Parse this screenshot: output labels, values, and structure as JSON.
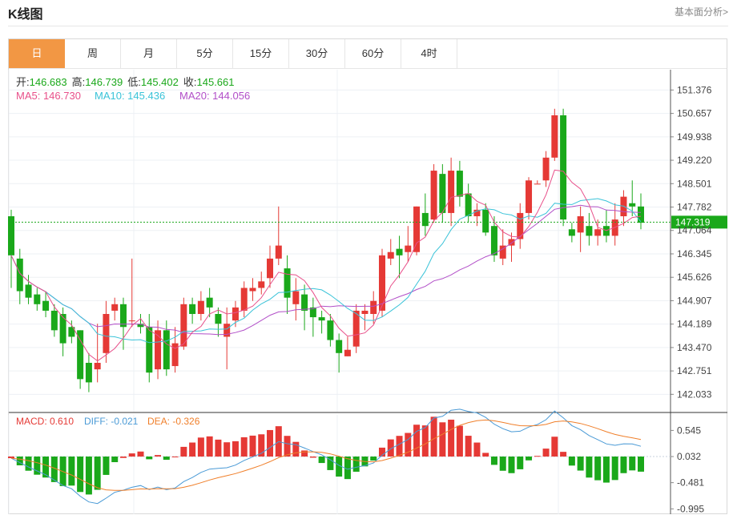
{
  "header": {
    "title": "K线图",
    "link": "基本面分析>"
  },
  "tabs": [
    "日",
    "周",
    "月",
    "5分",
    "15分",
    "30分",
    "60分",
    "4时"
  ],
  "active_tab": 0,
  "info": {
    "open_label": "开:",
    "open": "146.683",
    "high_label": "高:",
    "high": "146.739",
    "low_label": "低:",
    "low": "145.402",
    "close_label": "收:",
    "close": "145.661",
    "ma5": "MA5: 146.730",
    "ma10": "MA10: 145.436",
    "ma20": "MA20: 144.056"
  },
  "macd_info": {
    "macd": "MACD: 0.610",
    "diff": "DIFF: -0.021",
    "dea": "DEA: -0.326"
  },
  "current_price": "147.319",
  "colors": {
    "up": "#e53935",
    "down": "#1aa81a",
    "ma5": "#e8508a",
    "ma10": "#3ac3d8",
    "ma20": "#b24fc8",
    "diff": "#4a9ad6",
    "dea": "#f07f2a",
    "accent": "#f29744"
  },
  "chart_data": [
    {
      "type": "candlestick",
      "ylim": [
        141.5,
        152.0
      ],
      "y_ticks": [
        "151.376",
        "150.657",
        "149.938",
        "149.220",
        "148.501",
        "147.782",
        "147.064",
        "146.345",
        "145.626",
        "144.907",
        "144.189",
        "143.470",
        "142.751",
        "142.033"
      ],
      "candles": [
        [
          147.5,
          146.3,
          147.7,
          145.3
        ],
        [
          146.2,
          145.2,
          146.5,
          144.8
        ],
        [
          145.4,
          145.0,
          145.7,
          144.8
        ],
        [
          145.1,
          144.8,
          145.3,
          144.6
        ],
        [
          144.9,
          144.6,
          145.2,
          144.4
        ],
        [
          144.6,
          144.0,
          144.8,
          143.8
        ],
        [
          144.5,
          143.6,
          144.7,
          143.2
        ],
        [
          144.1,
          143.8,
          144.3,
          143.6
        ],
        [
          144.0,
          142.5,
          144.0,
          142.2
        ],
        [
          143.0,
          142.4,
          143.3,
          142.1
        ],
        [
          142.8,
          143.0,
          144.2,
          142.4
        ],
        [
          143.3,
          144.5,
          144.9,
          143.0
        ],
        [
          144.6,
          144.8,
          145.0,
          144.3
        ],
        [
          144.8,
          144.1,
          145.0,
          143.4
        ],
        [
          144.3,
          144.3,
          146.2,
          144.1
        ],
        [
          144.2,
          144.1,
          144.5,
          143.9
        ],
        [
          144.1,
          142.7,
          144.5,
          142.4
        ],
        [
          142.8,
          144.0,
          144.3,
          142.5
        ],
        [
          144.0,
          142.8,
          144.3,
          142.6
        ],
        [
          142.9,
          143.6,
          144.1,
          142.7
        ],
        [
          143.5,
          144.8,
          145.0,
          143.4
        ],
        [
          144.8,
          144.5,
          145.0,
          144.2
        ],
        [
          144.5,
          144.9,
          145.2,
          144.3
        ],
        [
          145.0,
          144.7,
          145.3,
          144.4
        ],
        [
          144.5,
          144.2,
          144.7,
          143.8
        ],
        [
          143.8,
          144.2,
          144.7,
          142.8
        ],
        [
          144.3,
          144.7,
          144.9,
          144.1
        ],
        [
          144.6,
          145.3,
          145.5,
          144.4
        ],
        [
          145.2,
          145.3,
          145.6,
          144.9
        ],
        [
          145.3,
          145.5,
          145.8,
          145.1
        ],
        [
          145.6,
          146.2,
          146.6,
          145.3
        ],
        [
          146.2,
          146.6,
          147.8,
          146.0
        ],
        [
          145.9,
          145.0,
          146.3,
          144.5
        ],
        [
          144.8,
          145.2,
          145.6,
          144.3
        ],
        [
          145.1,
          144.6,
          145.4,
          144.0
        ],
        [
          144.7,
          144.4,
          145.0,
          143.8
        ],
        [
          144.4,
          144.3,
          144.6,
          143.9
        ],
        [
          144.3,
          143.7,
          144.5,
          143.5
        ],
        [
          143.7,
          143.3,
          143.9,
          142.7
        ],
        [
          143.2,
          143.4,
          143.8,
          143.2
        ],
        [
          143.5,
          144.6,
          144.8,
          143.3
        ],
        [
          144.5,
          144.6,
          144.8,
          144.0
        ],
        [
          144.5,
          144.9,
          145.2,
          144.2
        ],
        [
          144.6,
          146.3,
          146.5,
          144.4
        ],
        [
          146.2,
          146.4,
          146.8,
          146.0
        ],
        [
          146.5,
          146.3,
          146.9,
          145.6
        ],
        [
          146.4,
          146.6,
          147.2,
          146.1
        ],
        [
          146.4,
          147.8,
          147.8,
          146.3
        ],
        [
          147.6,
          147.2,
          148.2,
          146.9
        ],
        [
          147.4,
          148.9,
          149.1,
          147.3
        ],
        [
          148.8,
          147.6,
          149.1,
          147.3
        ],
        [
          147.6,
          148.9,
          149.3,
          147.2
        ],
        [
          148.9,
          148.1,
          149.2,
          147.8
        ],
        [
          148.2,
          147.5,
          148.5,
          147.3
        ],
        [
          147.5,
          147.7,
          147.9,
          147.2
        ],
        [
          147.7,
          147.0,
          147.9,
          146.9
        ],
        [
          147.2,
          146.3,
          147.5,
          146.1
        ],
        [
          146.2,
          146.6,
          147.1,
          146.0
        ],
        [
          146.6,
          146.8,
          147.0,
          146.1
        ],
        [
          146.8,
          147.6,
          147.9,
          146.5
        ],
        [
          147.6,
          148.6,
          148.7,
          147.4
        ],
        [
          148.5,
          148.5,
          148.6,
          148.5
        ],
        [
          148.6,
          149.3,
          149.5,
          148.4
        ],
        [
          149.3,
          150.6,
          150.8,
          149.2
        ],
        [
          150.6,
          147.4,
          150.8,
          147.2
        ],
        [
          147.1,
          146.9,
          147.3,
          146.7
        ],
        [
          147.0,
          147.5,
          147.8,
          146.4
        ],
        [
          147.2,
          146.9,
          147.6,
          146.6
        ],
        [
          146.9,
          147.1,
          147.4,
          146.6
        ],
        [
          147.2,
          146.9,
          147.7,
          146.7
        ],
        [
          146.9,
          147.4,
          147.9,
          146.6
        ],
        [
          147.5,
          148.1,
          148.3,
          147.2
        ],
        [
          147.9,
          147.8,
          148.6,
          147.5
        ],
        [
          147.8,
          147.3,
          148.2,
          147.1
        ]
      ]
    },
    {
      "type": "macd",
      "ylim": [
        -1.1,
        0.85
      ],
      "y_ticks": [
        "0.545",
        "0.032",
        "-0.481",
        "-0.995"
      ]
    }
  ]
}
